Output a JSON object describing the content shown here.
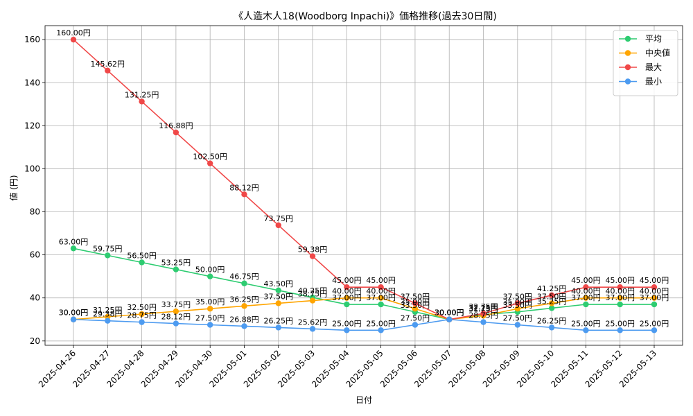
{
  "chart_data": {
    "type": "line",
    "title": "《人造木人18(Woodborg Inpachi)》価格推移(過去30日間)",
    "xlabel": "日付",
    "ylabel": "値 (円)",
    "categories": [
      "2025-04-26",
      "2025-04-27",
      "2025-04-28",
      "2025-04-29",
      "2025-04-30",
      "2025-05-01",
      "2025-05-02",
      "2025-05-03",
      "2025-05-04",
      "2025-05-05",
      "2025-05-06",
      "2025-05-07",
      "2025-05-08",
      "2025-05-09",
      "2025-05-10",
      "2025-05-11",
      "2025-05-12",
      "2025-05-13"
    ],
    "ylim": [
      18,
      166.5
    ],
    "yticks": [
      20,
      40,
      60,
      80,
      100,
      120,
      140,
      160
    ],
    "grid": true,
    "legend_position": "top-right",
    "label_suffix": "円",
    "series": [
      {
        "name": "平均",
        "color": "#2ecc71",
        "values": [
          63.0,
          59.75,
          56.5,
          53.25,
          50.0,
          46.75,
          43.5,
          40.25,
          37.0,
          37.0,
          33.5,
          30.0,
          32.25,
          33.5,
          35.25,
          37.0,
          37.0,
          37.0
        ]
      },
      {
        "name": "中央値",
        "color": "#ffa500",
        "values": [
          30.0,
          31.25,
          32.5,
          33.75,
          35.0,
          36.25,
          37.5,
          38.75,
          40.0,
          40.0,
          35.0,
          30.0,
          31.75,
          35.0,
          37.5,
          40.0,
          40.0,
          40.0
        ]
      },
      {
        "name": "最大",
        "color": "#f04848",
        "values": [
          160.0,
          145.62,
          131.25,
          116.88,
          102.5,
          88.12,
          73.75,
          59.38,
          45.0,
          45.0,
          37.5,
          30.0,
          32.75,
          37.5,
          41.25,
          45.0,
          45.0,
          45.0
        ]
      },
      {
        "name": "最小",
        "color": "#4d9bf0",
        "values": [
          30.0,
          29.38,
          28.75,
          28.12,
          27.5,
          26.88,
          26.25,
          25.62,
          25.0,
          25.0,
          27.5,
          30.0,
          28.75,
          27.5,
          26.25,
          25.0,
          25.0,
          25.0
        ]
      }
    ]
  }
}
